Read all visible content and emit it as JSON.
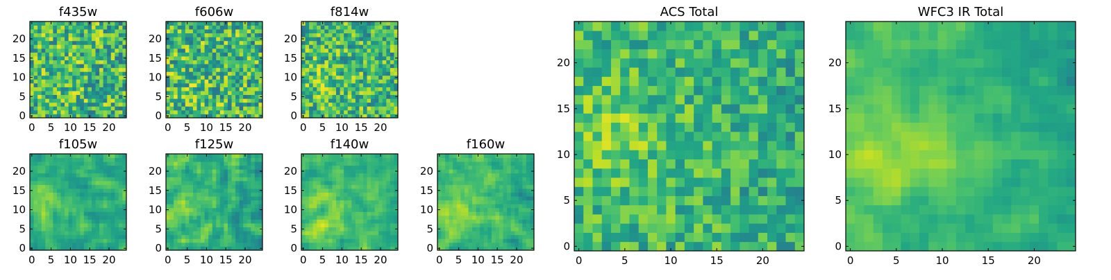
{
  "figure": {
    "description": "Grid of pixel heatmaps for HST filters"
  },
  "chart_data": {
    "type": "heatmap",
    "grid_size": 25,
    "colormap": "viridis",
    "panels": [
      {
        "title": "f435w",
        "xticks": [
          0,
          5,
          10,
          15,
          20
        ],
        "yticks": [
          0,
          5,
          10,
          15,
          20
        ],
        "hot_spot": [
          5,
          10
        ],
        "noise": 0.9,
        "smooth": 0
      },
      {
        "title": "f606w",
        "xticks": [
          0,
          5,
          10,
          15,
          20
        ],
        "yticks": [
          0,
          5,
          10,
          15,
          20
        ],
        "hot_spot": [
          5,
          10
        ],
        "noise": 0.9,
        "smooth": 0
      },
      {
        "title": "f814w",
        "xticks": [
          0,
          5,
          10,
          15,
          20
        ],
        "yticks": [
          0,
          5,
          10,
          15,
          20
        ],
        "hot_spot": [
          4,
          10
        ],
        "noise": 0.85,
        "smooth": 0
      },
      {
        "title": "f105w",
        "xticks": [
          0,
          5,
          10,
          15,
          20
        ],
        "yticks": [
          0,
          5,
          10,
          15,
          20
        ],
        "hot_spot": [
          4,
          11
        ],
        "noise": 0.6,
        "smooth": 1
      },
      {
        "title": "f125w",
        "xticks": [
          0,
          5,
          10,
          15,
          20
        ],
        "yticks": [
          0,
          5,
          10,
          15,
          20
        ],
        "hot_spot": [
          4,
          11
        ],
        "noise": 0.65,
        "smooth": 1
      },
      {
        "title": "f140w",
        "xticks": [
          0,
          5,
          10,
          15,
          20
        ],
        "yticks": [
          0,
          5,
          10,
          15,
          20
        ],
        "hot_spot": [
          4,
          10
        ],
        "noise": 0.6,
        "smooth": 1
      },
      {
        "title": "f160w",
        "xticks": [
          0,
          5,
          10,
          15,
          20
        ],
        "yticks": [
          0,
          5,
          10,
          15,
          20
        ],
        "hot_spot": [
          4,
          10
        ],
        "noise": 0.55,
        "smooth": 1
      },
      {
        "title": "ACS Total",
        "xticks": [
          0,
          5,
          10,
          15,
          20
        ],
        "yticks": [
          0,
          5,
          10,
          15,
          20
        ],
        "hot_spot": [
          3,
          12
        ],
        "noise": 0.6,
        "smooth": 0
      },
      {
        "title": "WFC3 IR Total",
        "xticks": [
          0,
          5,
          10,
          15,
          20
        ],
        "yticks": [
          0,
          5,
          10,
          15,
          20
        ],
        "hot_spot": [
          4,
          11
        ],
        "noise": 0.4,
        "smooth": 1
      }
    ]
  }
}
